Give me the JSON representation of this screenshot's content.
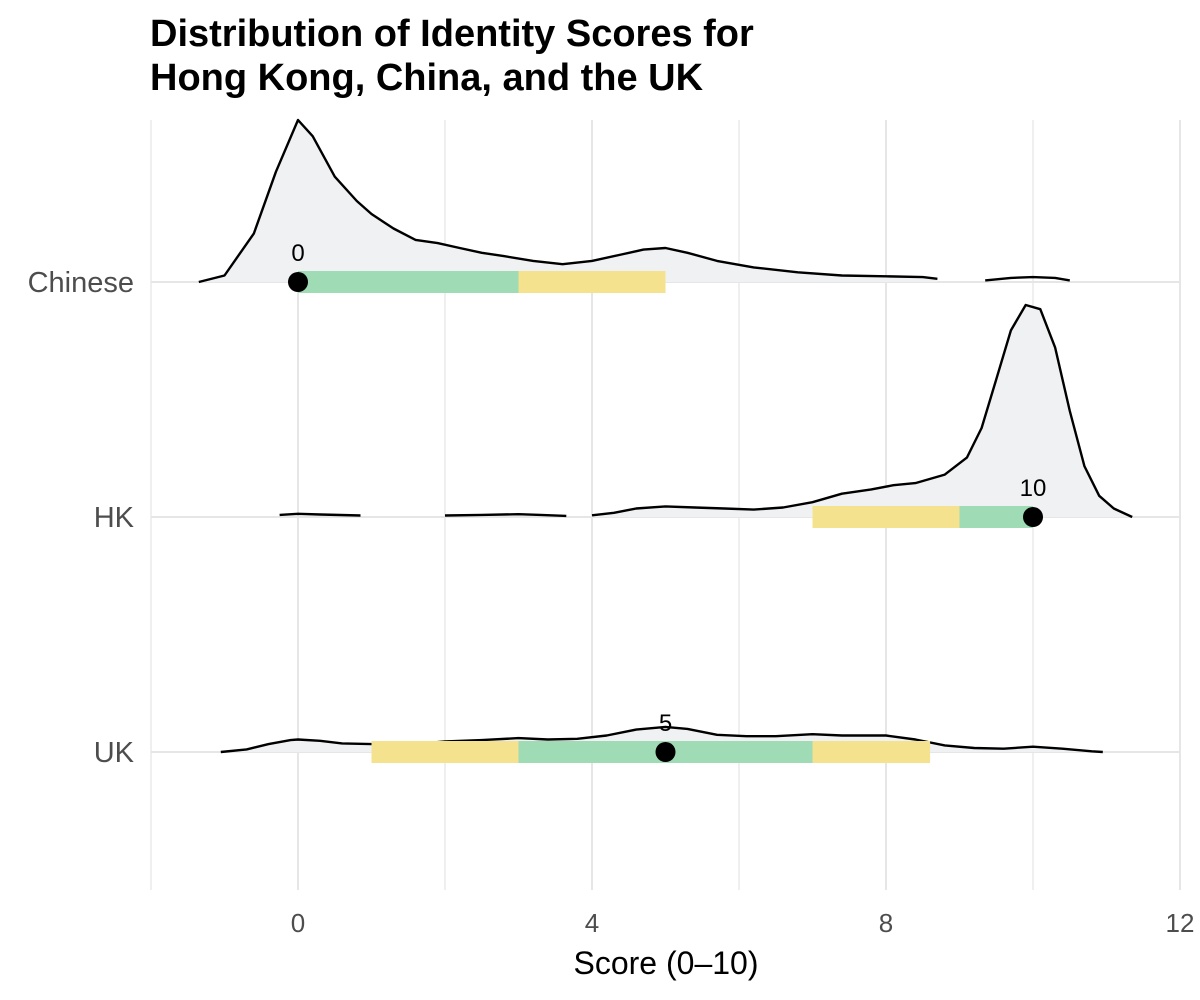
{
  "chart_data": {
    "type": "ridgeline",
    "title_lines": [
      "Distribution of Identity Scores for",
      "Hong Kong, China, and the UK"
    ],
    "xlabel": "Score (0–10)",
    "ylabel": "",
    "xlim": [
      -2,
      12
    ],
    "x_ticks": [
      0,
      4,
      8,
      12
    ],
    "grid": true,
    "categories": [
      "Chinese",
      "HK",
      "UK"
    ],
    "series": [
      {
        "name": "Chinese",
        "median": 0,
        "median_label": "0",
        "iqr": [
          0,
          3
        ],
        "range_80": [
          0,
          5
        ],
        "density": [
          [
            -1.35,
            0.0
          ],
          [
            -1.0,
            0.04
          ],
          [
            -0.6,
            0.3
          ],
          [
            -0.3,
            0.68
          ],
          [
            0,
            1.0
          ],
          [
            0.2,
            0.9
          ],
          [
            0.5,
            0.65
          ],
          [
            0.8,
            0.5
          ],
          [
            1.0,
            0.42
          ],
          [
            1.3,
            0.33
          ],
          [
            1.6,
            0.26
          ],
          [
            1.9,
            0.24
          ],
          [
            2.2,
            0.21
          ],
          [
            2.5,
            0.18
          ],
          [
            2.8,
            0.16
          ],
          [
            3.2,
            0.13
          ],
          [
            3.6,
            0.11
          ],
          [
            4.0,
            0.13
          ],
          [
            4.4,
            0.17
          ],
          [
            4.7,
            0.2
          ],
          [
            5.0,
            0.21
          ],
          [
            5.3,
            0.18
          ],
          [
            5.7,
            0.13
          ],
          [
            6.2,
            0.09
          ],
          [
            6.8,
            0.06
          ],
          [
            7.4,
            0.04
          ],
          [
            8.0,
            0.035
          ],
          [
            8.5,
            0.03
          ],
          [
            8.7,
            0.02
          ]
        ],
        "density_segment2": [
          [
            9.35,
            0.01
          ],
          [
            9.7,
            0.025
          ],
          [
            10.0,
            0.03
          ],
          [
            10.3,
            0.025
          ],
          [
            10.5,
            0.01
          ]
        ]
      },
      {
        "name": "HK",
        "median": 10,
        "median_label": "10",
        "iqr": [
          9,
          10
        ],
        "range_80": [
          7,
          10
        ],
        "density_segment1": [
          [
            -0.25,
            0.01
          ],
          [
            0.0,
            0.015
          ],
          [
            0.3,
            0.012
          ],
          [
            0.85,
            0.007
          ]
        ],
        "density_segment2": [
          [
            2.0,
            0.007
          ],
          [
            2.5,
            0.01
          ],
          [
            3.0,
            0.013
          ],
          [
            3.3,
            0.01
          ],
          [
            3.65,
            0.005
          ]
        ],
        "density": [
          [
            4.0,
            0.008
          ],
          [
            4.3,
            0.02
          ],
          [
            4.6,
            0.04
          ],
          [
            5.0,
            0.05
          ],
          [
            5.4,
            0.045
          ],
          [
            5.8,
            0.04
          ],
          [
            6.2,
            0.035
          ],
          [
            6.6,
            0.045
          ],
          [
            7.0,
            0.07
          ],
          [
            7.4,
            0.11
          ],
          [
            7.8,
            0.13
          ],
          [
            8.1,
            0.15
          ],
          [
            8.4,
            0.16
          ],
          [
            8.8,
            0.2
          ],
          [
            9.1,
            0.28
          ],
          [
            9.3,
            0.42
          ],
          [
            9.5,
            0.65
          ],
          [
            9.7,
            0.88
          ],
          [
            9.9,
            1.0
          ],
          [
            10.1,
            0.98
          ],
          [
            10.3,
            0.8
          ],
          [
            10.5,
            0.5
          ],
          [
            10.7,
            0.24
          ],
          [
            10.9,
            0.1
          ],
          [
            11.1,
            0.04
          ],
          [
            11.35,
            0.0
          ]
        ]
      },
      {
        "name": "UK",
        "median": 5,
        "median_label": "5",
        "iqr": [
          3,
          7
        ],
        "range_80": [
          1,
          8.6
        ],
        "density": [
          [
            -1.05,
            0.0
          ],
          [
            -0.7,
            0.04
          ],
          [
            -0.4,
            0.12
          ],
          [
            -0.1,
            0.18
          ],
          [
            0.0,
            0.19
          ],
          [
            0.3,
            0.17
          ],
          [
            0.6,
            0.13
          ],
          [
            1.0,
            0.12
          ],
          [
            1.5,
            0.11
          ],
          [
            2.0,
            0.16
          ],
          [
            2.5,
            0.18
          ],
          [
            3.0,
            0.21
          ],
          [
            3.4,
            0.19
          ],
          [
            3.8,
            0.2
          ],
          [
            4.2,
            0.25
          ],
          [
            4.6,
            0.34
          ],
          [
            5.0,
            0.38
          ],
          [
            5.3,
            0.35
          ],
          [
            5.7,
            0.26
          ],
          [
            6.1,
            0.24
          ],
          [
            6.5,
            0.24
          ],
          [
            7.0,
            0.27
          ],
          [
            7.4,
            0.25
          ],
          [
            8.0,
            0.25
          ],
          [
            8.4,
            0.19
          ],
          [
            8.8,
            0.1
          ],
          [
            9.2,
            0.06
          ],
          [
            9.6,
            0.05
          ],
          [
            10.0,
            0.08
          ],
          [
            10.4,
            0.05
          ],
          [
            10.8,
            0.01
          ],
          [
            10.95,
            0.0
          ]
        ]
      }
    ],
    "colors": {
      "density_fill": "#f0f1f3",
      "density_line": "#000000",
      "iqr": "#9fdbb4",
      "range_80": "#f5e28f",
      "median": "#000000",
      "grid": "#e6e6e6",
      "tick_label": "#4d4d4d"
    }
  }
}
